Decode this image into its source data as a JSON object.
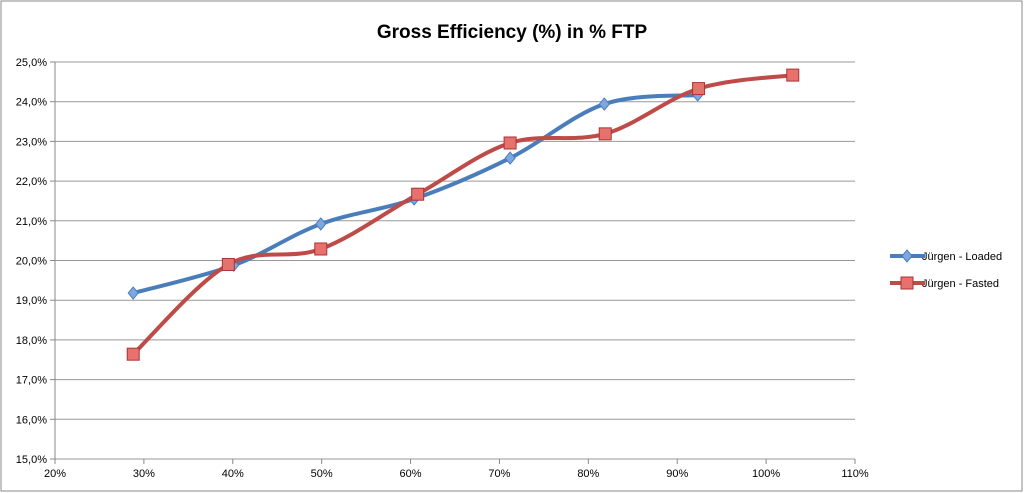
{
  "chart_data": {
    "type": "line",
    "title": "Gross Efficiency (%) in % FTP",
    "xlabel": "",
    "ylabel": "",
    "xlim": [
      20,
      110
    ],
    "ylim": [
      15,
      25
    ],
    "x_ticks": [
      "20%",
      "30%",
      "40%",
      "50%",
      "60%",
      "70%",
      "80%",
      "90%",
      "100%",
      "110%"
    ],
    "y_ticks": [
      "15,0%",
      "16,0%",
      "17,0%",
      "18,0%",
      "19,0%",
      "20,0%",
      "21,0%",
      "22,0%",
      "23,0%",
      "24,0%",
      "25,0%"
    ],
    "grid": "horizontal",
    "smooth": true,
    "legend_position": "right",
    "series": [
      {
        "name": "Jürgen - Loaded",
        "color": "#4a7ebb",
        "marker": "diamond",
        "x": [
          28.8,
          40.1,
          49.9,
          60.4,
          71.2,
          81.8,
          92.3
        ],
        "y": [
          19.18,
          19.88,
          20.92,
          21.55,
          22.58,
          23.94,
          24.17
        ]
      },
      {
        "name": "Jürgen - Fasted",
        "color": "#be4b48",
        "marker": "square",
        "x": [
          28.8,
          39.5,
          49.9,
          60.8,
          71.2,
          81.9,
          92.4,
          103.0
        ],
        "y": [
          17.64,
          19.9,
          20.29,
          21.67,
          22.96,
          23.19,
          24.33,
          24.67
        ]
      }
    ]
  }
}
